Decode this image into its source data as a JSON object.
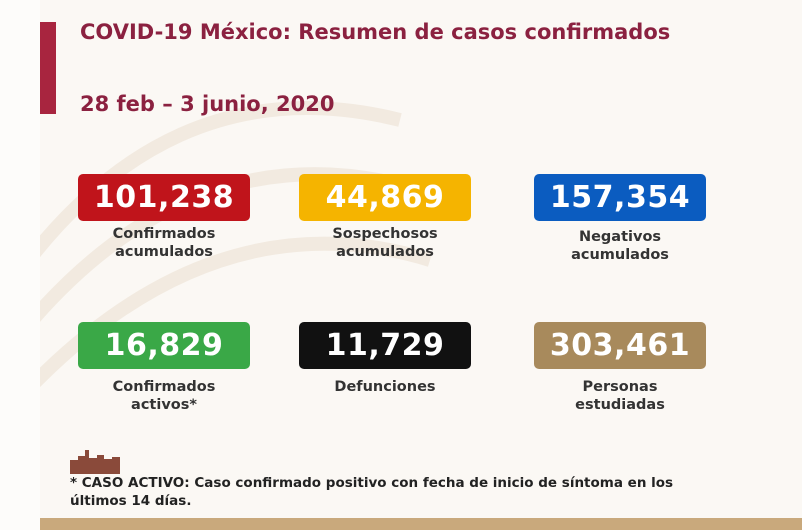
{
  "title": "COVID-19 México: Resumen de casos confirmados",
  "subtitle": "28 feb – 3 junio, 2020",
  "stats": [
    {
      "value": "101,238",
      "label_line1": "Confirmados",
      "label_line2": "acumulados",
      "color": "#c0141b"
    },
    {
      "value": "44,869",
      "label_line1": "Sospechosos",
      "label_line2": "acumulados",
      "color": "#f5b400"
    },
    {
      "value": "157,354",
      "label_line1": "Negativos",
      "label_line2": "acumulados",
      "color": "#0b5cc0"
    },
    {
      "value": "16,829",
      "label_line1": "Confirmados",
      "label_line2": "activos*",
      "color": "#3aa847"
    },
    {
      "value": "11,729",
      "label_line1": "Defunciones",
      "label_line2": "",
      "color": "#111111"
    },
    {
      "value": "303,461",
      "label_line1": "Personas",
      "label_line2": "estudiadas",
      "color": "#a88a5c"
    }
  ],
  "footnote": "* CASO ACTIVO: Caso confirmado positivo con fecha de inicio de síntoma en los últimos 14 días.",
  "colors": {
    "title": "#8b2140",
    "accent_bar": "#a8253f",
    "bottom_bar": "#c9a97c"
  }
}
